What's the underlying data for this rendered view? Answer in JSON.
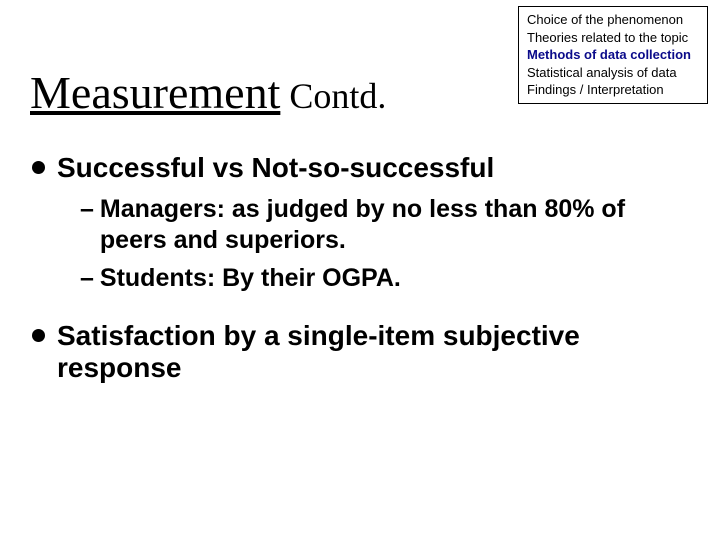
{
  "navbox": {
    "l1": "Choice of the phenomenon",
    "l2": "Theories related to the topic",
    "l3": "Methods of data collection",
    "l4": "Statistical analysis of data",
    "l5": "Findings / Interpretation"
  },
  "title": {
    "main": "Measurement",
    "suffix": " Contd."
  },
  "bullets": {
    "b1": "Successful vs Not-so-successful",
    "s1a": "Managers: as judged by no less than 80% of peers and superiors.",
    "s1b": "Students: By their OGPA.",
    "b2": "Satisfaction by a single-item subjective response"
  },
  "colors": {
    "linkblue": "#0b0b8a"
  }
}
